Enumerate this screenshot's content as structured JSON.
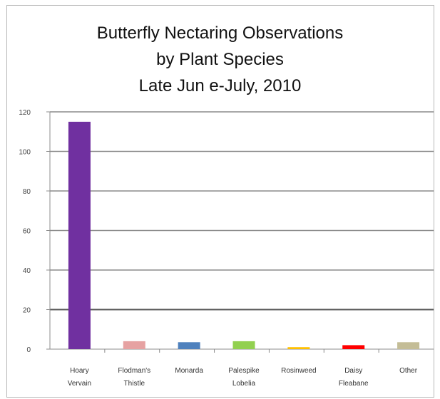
{
  "chart_data": {
    "type": "bar",
    "title_lines": [
      "Butterfly Nectaring Observations",
      "by Plant Species",
      "Late Jun e-July, 2010"
    ],
    "xlabel": "",
    "ylabel": "",
    "ylim": [
      0,
      120
    ],
    "yticks": [
      0,
      20,
      40,
      60,
      80,
      100,
      120
    ],
    "grid": true,
    "legend": "none",
    "categories": [
      [
        "Hoary",
        "Vervain"
      ],
      [
        "Flodman's",
        "Thistle"
      ],
      [
        "Monarda"
      ],
      [
        "Palespike",
        "Lobelia"
      ],
      [
        "Rosinweed"
      ],
      [
        "Daisy",
        "Fleabane"
      ],
      [
        "Other"
      ]
    ],
    "values": [
      115,
      4,
      3.5,
      4,
      1,
      2,
      3.5
    ],
    "colors": [
      "#7030a0",
      "#e6a2a2",
      "#4f81bd",
      "#92d050",
      "#ffc000",
      "#ff0000",
      "#c4bd97"
    ]
  }
}
